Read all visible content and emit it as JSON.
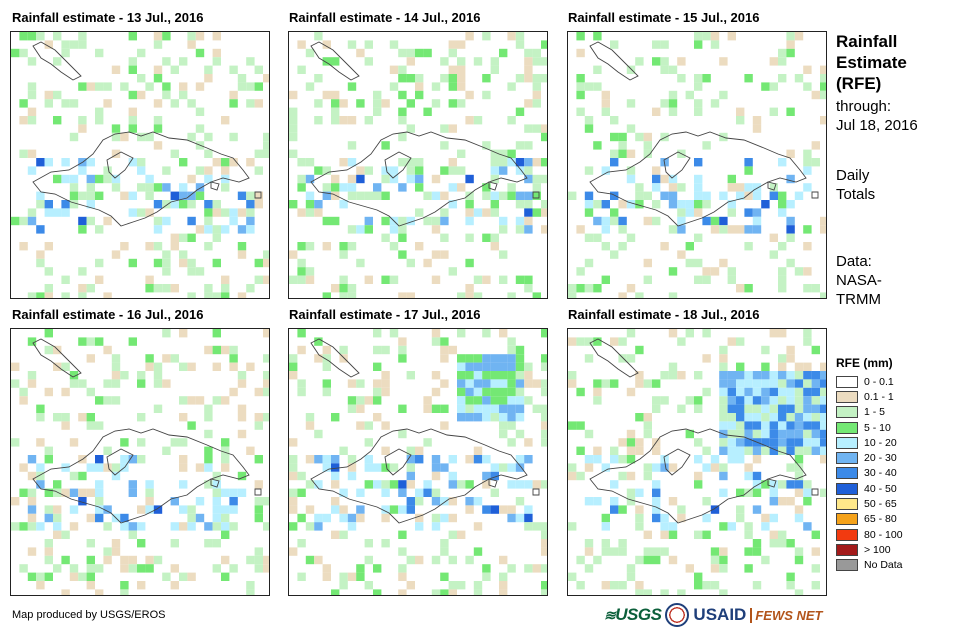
{
  "panels": [
    {
      "title": "Rainfall estimate - 13 Jul., 2016"
    },
    {
      "title": "Rainfall estimate - 14 Jul., 2016"
    },
    {
      "title": "Rainfall estimate - 15 Jul., 2016"
    },
    {
      "title": "Rainfall estimate - 16 Jul., 2016"
    },
    {
      "title": "Rainfall estimate - 17 Jul., 2016"
    },
    {
      "title": "Rainfall estimate - 18 Jul., 2016"
    }
  ],
  "side": {
    "title_lines": [
      "Rainfall",
      "Estimate",
      "(RFE)"
    ],
    "through_label": "through:",
    "through_date": "Jul 18, 2016",
    "period_lines": [
      "Daily",
      "Totals"
    ],
    "source_lines": [
      "Data:",
      "NASA-",
      "TRMM"
    ]
  },
  "legend": {
    "title": "RFE (mm)",
    "classes": [
      {
        "label": "0 - 0.1",
        "color": "#ffffff"
      },
      {
        "label": "0.1 - 1",
        "color": "#ecdcc0"
      },
      {
        "label": "1 - 5",
        "color": "#c4f2c4"
      },
      {
        "label": "5 - 10",
        "color": "#74e874"
      },
      {
        "label": "10 - 20",
        "color": "#b7efff"
      },
      {
        "label": "20 - 30",
        "color": "#70b4f2"
      },
      {
        "label": "30 - 40",
        "color": "#3c8ae8"
      },
      {
        "label": "40 - 50",
        "color": "#1f5fd8"
      },
      {
        "label": "50 - 65",
        "color": "#ffe88a"
      },
      {
        "label": "65 - 80",
        "color": "#f5a21a"
      },
      {
        "label": "80 - 100",
        "color": "#f23a10"
      },
      {
        "label": "> 100",
        "color": "#a31a1a"
      },
      {
        "label": "No Data",
        "color": "#999999"
      }
    ]
  },
  "footer": {
    "credit": "Map produced by USGS/EROS"
  },
  "logos": {
    "usgs": "USGS",
    "usaid": "USAID",
    "fews": "FEWS NET"
  }
}
